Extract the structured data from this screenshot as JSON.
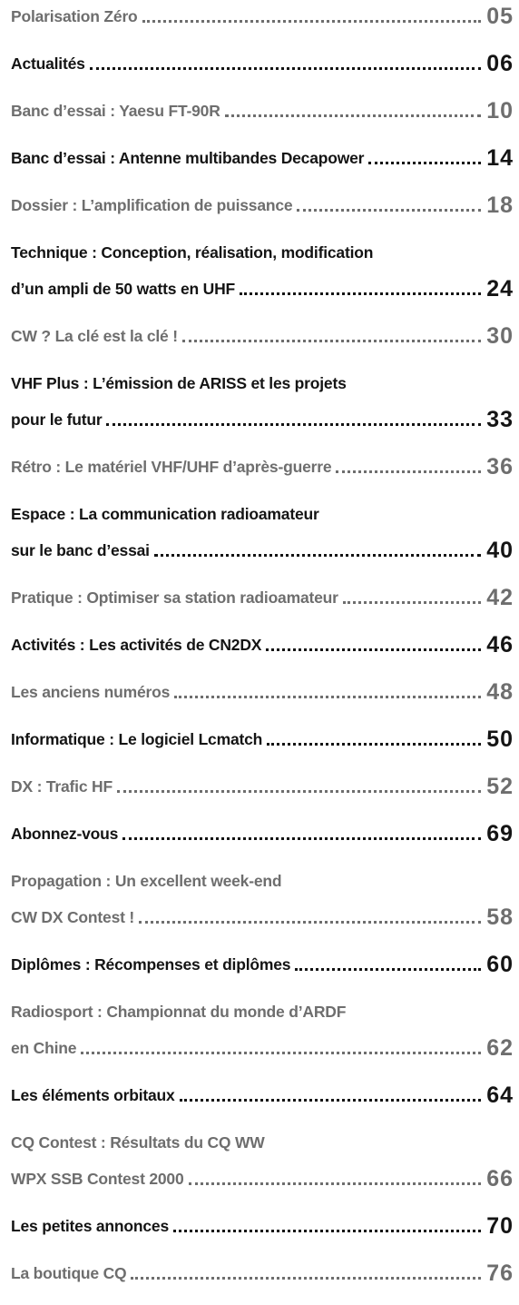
{
  "entries": [
    {
      "lines": [
        "Polarisation Zéro"
      ],
      "page": "05"
    },
    {
      "lines": [
        "Actualités"
      ],
      "page": "06"
    },
    {
      "lines": [
        "Banc d’essai : Yaesu FT-90R"
      ],
      "page": "10"
    },
    {
      "lines": [
        "Banc d’essai : Antenne multibandes Decapower"
      ],
      "page": "14"
    },
    {
      "lines": [
        "Dossier : L’amplification de puissance"
      ],
      "page": "18"
    },
    {
      "lines": [
        "Technique : Conception, réalisation, modification",
        "d’un ampli de 50 watts en UHF"
      ],
      "page": "24"
    },
    {
      "lines": [
        "CW ? La clé est la clé !"
      ],
      "page": "30"
    },
    {
      "lines": [
        "VHF Plus : L’émission de ARISS et les projets",
        "pour le futur"
      ],
      "page": "33"
    },
    {
      "lines": [
        "Rétro : Le matériel VHF/UHF d’après-guerre"
      ],
      "page": "36"
    },
    {
      "lines": [
        "Espace : La communication radioamateur",
        "sur le banc d’essai"
      ],
      "page": "40"
    },
    {
      "lines": [
        "Pratique : Optimiser sa station radioamateur"
      ],
      "page": "42"
    },
    {
      "lines": [
        "Activités : Les activités de CN2DX"
      ],
      "page": "46"
    },
    {
      "lines": [
        "Les anciens numéros"
      ],
      "page": "48"
    },
    {
      "lines": [
        "Informatique : Le logiciel Lcmatch"
      ],
      "page": "50"
    },
    {
      "lines": [
        "DX : Trafic HF"
      ],
      "page": "52"
    },
    {
      "lines": [
        "Abonnez-vous"
      ],
      "page": "69"
    },
    {
      "lines": [
        "Propagation : Un excellent week-end",
        "CW DX Contest !"
      ],
      "page": "58"
    },
    {
      "lines": [
        "Diplômes : Récompenses et diplômes"
      ],
      "page": "60"
    },
    {
      "lines": [
        "Radiosport : Championnat du monde d’ARDF",
        "en Chine"
      ],
      "page": "62"
    },
    {
      "lines": [
        "Les éléments orbitaux"
      ],
      "page": "64"
    },
    {
      "lines": [
        "CQ Contest : Résultats du CQ WW",
        "WPX SSB Contest 2000"
      ],
      "page": "66"
    },
    {
      "lines": [
        "Les petites annonces"
      ],
      "page": "70"
    },
    {
      "lines": [
        "La boutique CQ"
      ],
      "page": "76"
    }
  ]
}
